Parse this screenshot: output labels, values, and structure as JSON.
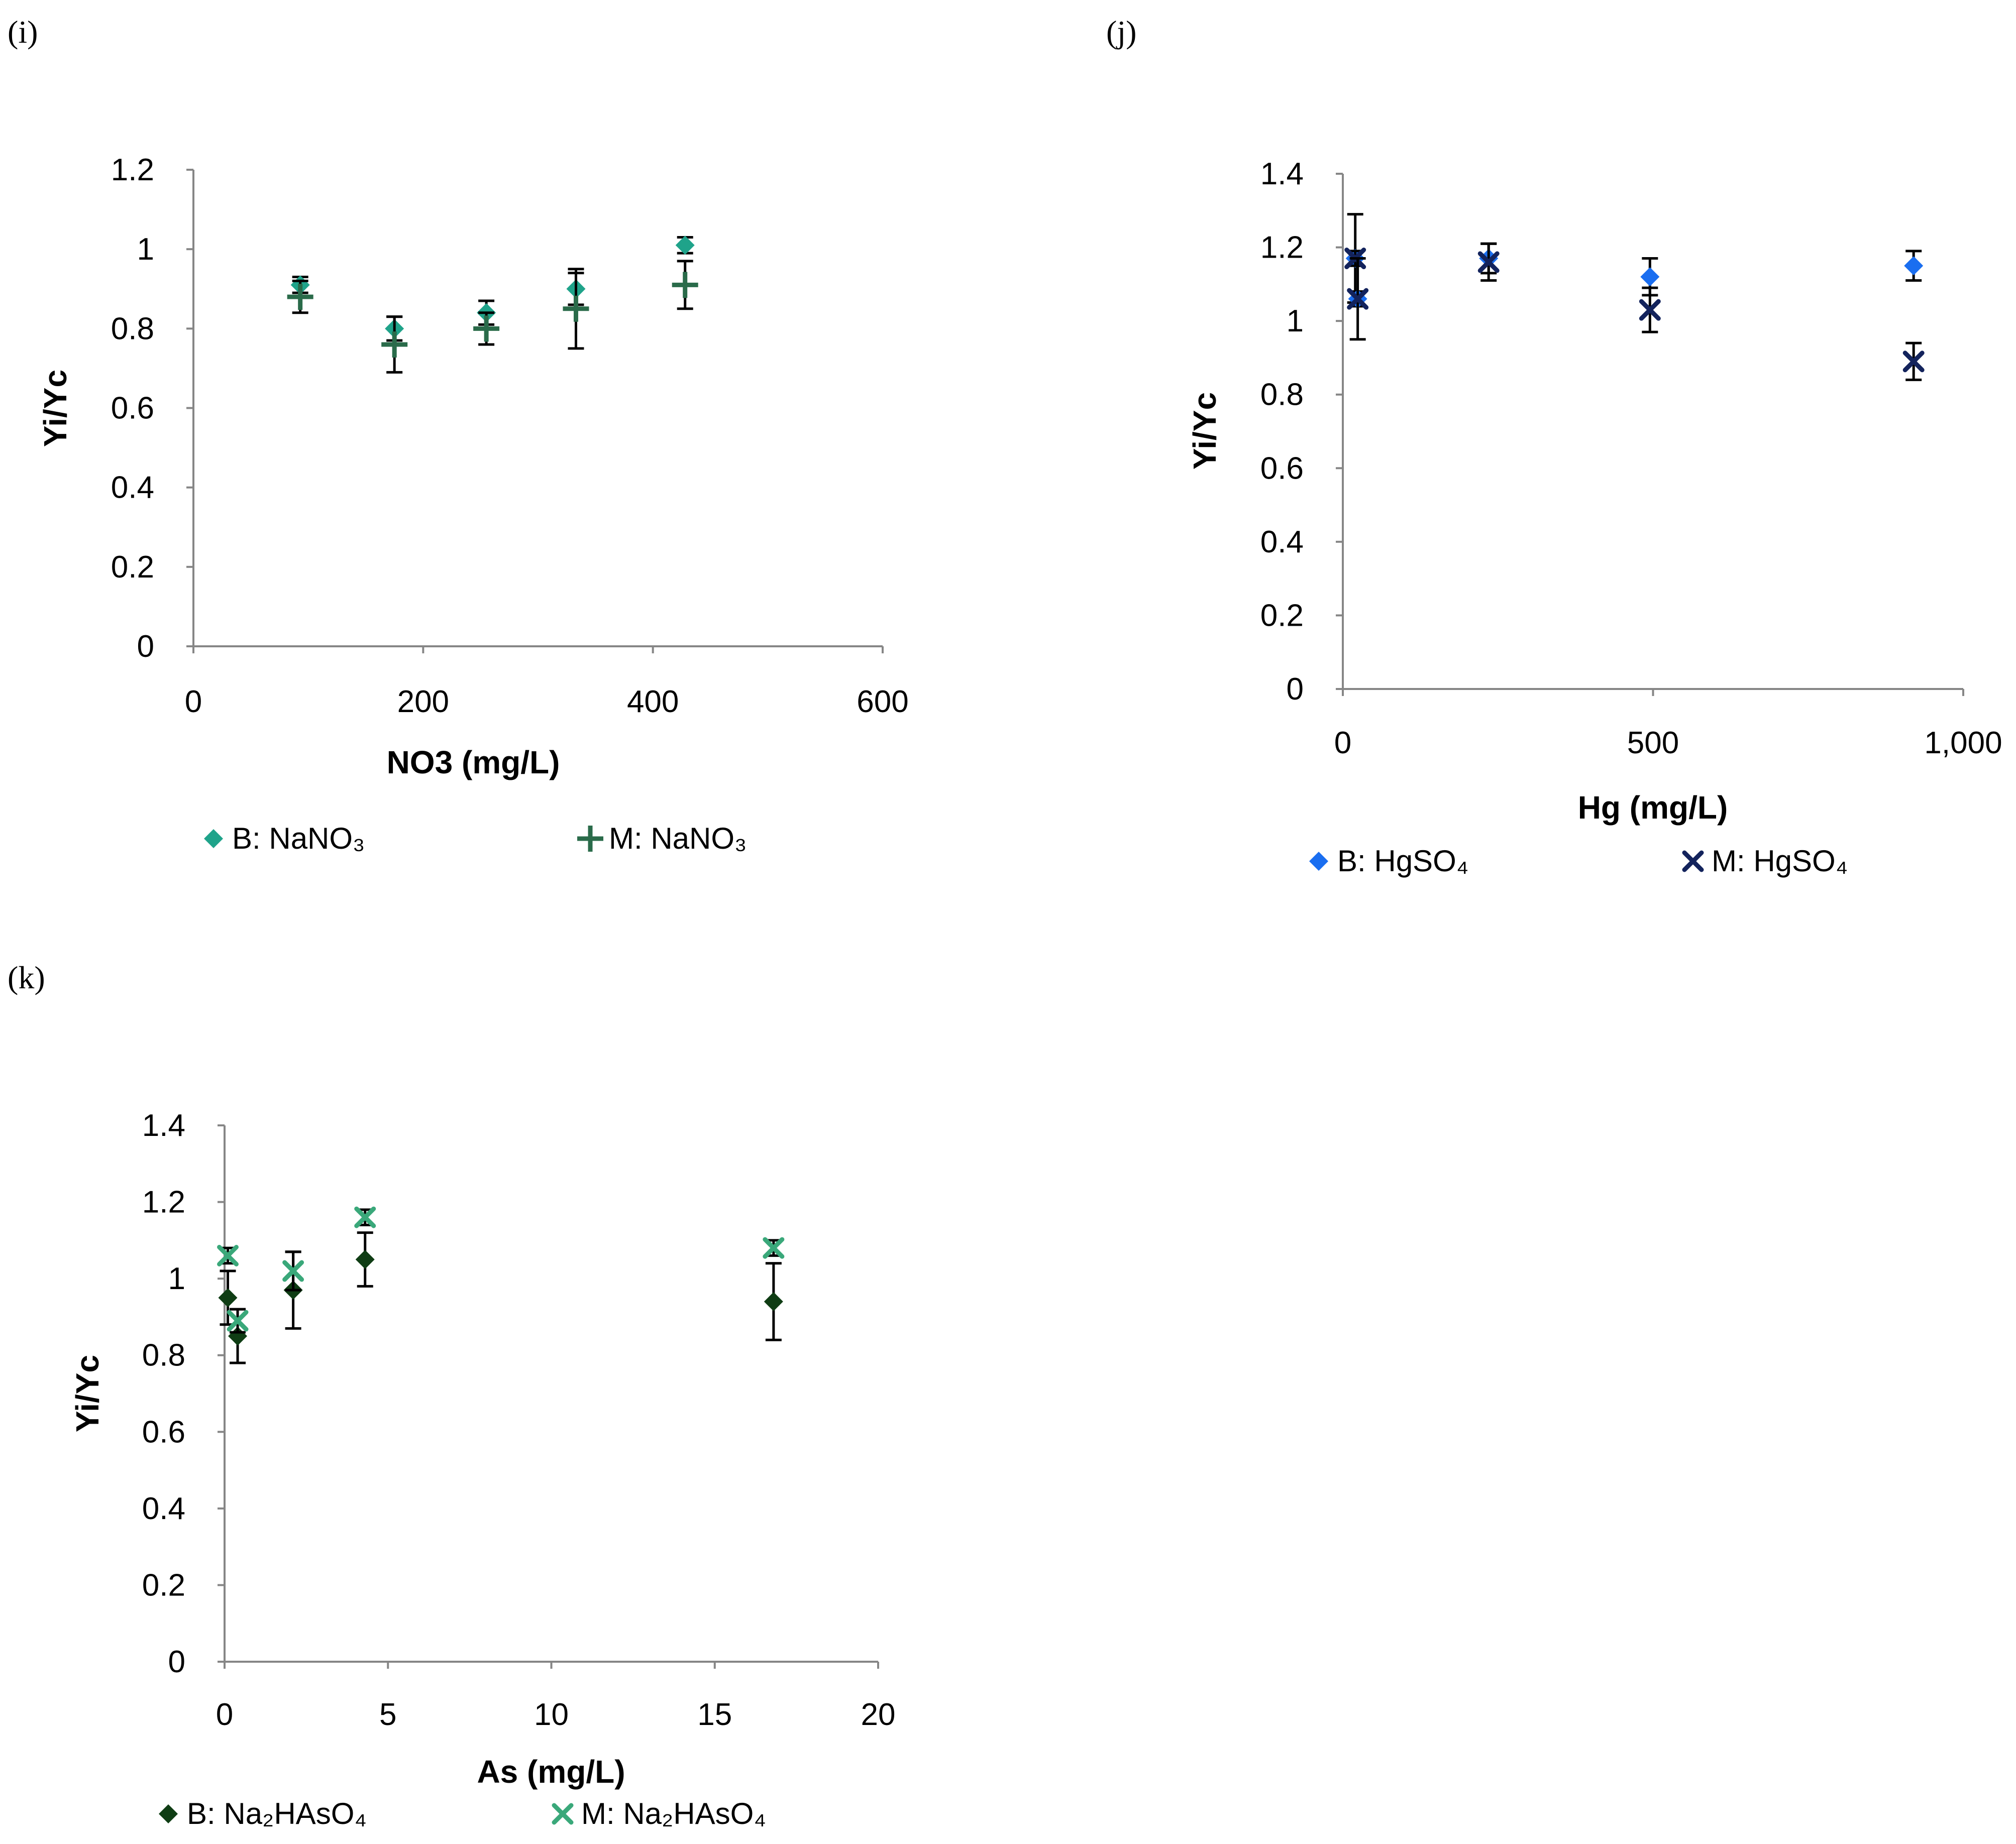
{
  "chart_data": [
    {
      "panel_label": "(i)",
      "type": "scatter",
      "xlabel": "NO3 (mg/L)",
      "ylabel": "Yi/Yc",
      "xlim": [
        0,
        600
      ],
      "ylim": [
        0,
        1.2
      ],
      "xticks": [
        0,
        200,
        400,
        600
      ],
      "xtick_labels": [
        "0",
        "200",
        "400",
        "600"
      ],
      "yticks": [
        0,
        0.2,
        0.4,
        0.6,
        0.8,
        1,
        1.2
      ],
      "ytick_labels": [
        "0",
        "0.2",
        "0.4",
        "0.6",
        "0.8",
        "1",
        "1.2"
      ],
      "legend_position": "bottom",
      "series": [
        {
          "name": "B: NaNO₃",
          "marker": "diamond",
          "color": "#1fa38a",
          "x": [
            93,
            175,
            255,
            333,
            428
          ],
          "y": [
            0.91,
            0.8,
            0.84,
            0.9,
            1.01
          ],
          "err": [
            0.02,
            0.03,
            0.03,
            0.04,
            0.02
          ]
        },
        {
          "name": "M: NaNO₃",
          "marker": "plus",
          "color": "#2a6b4a",
          "x": [
            93,
            175,
            255,
            333,
            428
          ],
          "y": [
            0.88,
            0.76,
            0.8,
            0.85,
            0.91
          ],
          "err": [
            0.04,
            0.07,
            0.04,
            0.1,
            0.06
          ]
        }
      ]
    },
    {
      "panel_label": "(j)",
      "type": "scatter",
      "xlabel": "Hg (mg/L)",
      "ylabel": "Yi/Yc",
      "xlim": [
        0,
        1000
      ],
      "ylim": [
        0,
        1.4
      ],
      "xticks": [
        0,
        500,
        1000
      ],
      "xtick_labels": [
        "0",
        "500",
        "1,000"
      ],
      "yticks": [
        0,
        0.2,
        0.4,
        0.6,
        0.8,
        1,
        1.2,
        1.4
      ],
      "ytick_labels": [
        "0",
        "0.2",
        "0.4",
        "0.6",
        "0.8",
        "1",
        "1.2",
        "1.4"
      ],
      "legend_position": "bottom",
      "series": [
        {
          "name": "B: HgSO₄",
          "marker": "diamond",
          "color": "#1a6ef0",
          "x": [
            20,
            24,
            235,
            495,
            920
          ],
          "y": [
            1.17,
            1.06,
            1.17,
            1.12,
            1.15
          ],
          "err": [
            0.12,
            0.02,
            0.04,
            0.05,
            0.04
          ]
        },
        {
          "name": "M: HgSO₄",
          "marker": "x",
          "color": "#13235c",
          "x": [
            20,
            24,
            235,
            495,
            920
          ],
          "y": [
            1.17,
            1.06,
            1.16,
            1.03,
            0.89
          ],
          "err": [
            0.02,
            0.11,
            0.05,
            0.06,
            0.05
          ]
        }
      ]
    },
    {
      "panel_label": "(k)",
      "type": "scatter",
      "xlabel": "As (mg/L)",
      "ylabel": "Yi/Yc",
      "xlim": [
        0,
        20
      ],
      "ylim": [
        0,
        1.4
      ],
      "xticks": [
        0,
        5,
        10,
        15,
        20
      ],
      "xtick_labels": [
        "0",
        "5",
        "10",
        "15",
        "20"
      ],
      "yticks": [
        0,
        0.2,
        0.4,
        0.6,
        0.8,
        1,
        1.2,
        1.4
      ],
      "ytick_labels": [
        "0",
        "0.2",
        "0.4",
        "0.6",
        "0.8",
        "1",
        "1.2",
        "1.4"
      ],
      "legend_position": "bottom",
      "series": [
        {
          "name": "B: Na₂HAsO₄",
          "marker": "diamond",
          "color": "#0f3d14",
          "x": [
            0.1,
            0.4,
            2.1,
            4.3,
            16.8
          ],
          "y": [
            0.95,
            0.85,
            0.97,
            1.05,
            0.94
          ],
          "err": [
            0.07,
            0.07,
            0.1,
            0.07,
            0.1
          ]
        },
        {
          "name": "M: Na₂HAsO₄",
          "marker": "x",
          "color": "#3aa87a",
          "x": [
            0.1,
            0.4,
            2.1,
            4.3,
            16.8
          ],
          "y": [
            1.06,
            0.89,
            1.02,
            1.16,
            1.08
          ],
          "err": [
            0.02,
            0.03,
            0.05,
            0.02,
            0.02
          ]
        }
      ]
    }
  ]
}
